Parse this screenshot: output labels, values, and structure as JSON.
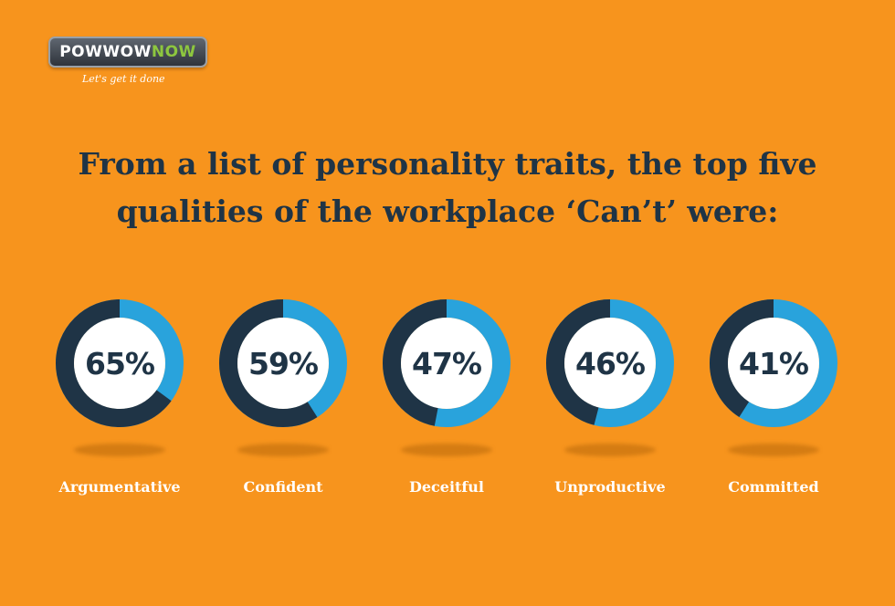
{
  "logo": {
    "brand_part1": "POWWOW",
    "brand_part2": "NOW",
    "tagline": "Let's get it done"
  },
  "title_line1": "From a list of personality traits, the top five",
  "title_line2": "qualities of the workplace ‘Can’t’ were:",
  "colors": {
    "background": "#f7941d",
    "filled": "#1f3446",
    "remaining": "#29a3dc",
    "text": "#1f3446"
  },
  "chart_data": {
    "type": "pie",
    "subtype": "donut",
    "categories": [
      "Argumentative",
      "Confident",
      "Deceitful",
      "Unproductive",
      "Committed"
    ],
    "values": [
      65,
      59,
      47,
      46,
      41
    ],
    "labels": [
      "65%",
      "59%",
      "47%",
      "46%",
      "41%"
    ],
    "unit": "%"
  }
}
